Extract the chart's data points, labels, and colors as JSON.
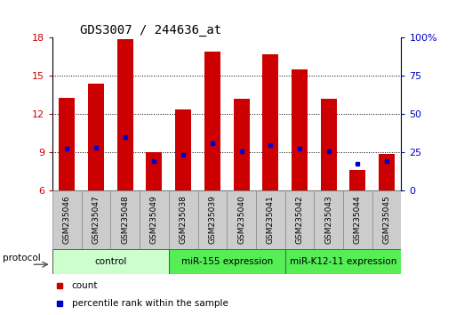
{
  "title": "GDS3007 / 244636_at",
  "samples": [
    "GSM235046",
    "GSM235047",
    "GSM235048",
    "GSM235049",
    "GSM235038",
    "GSM235039",
    "GSM235040",
    "GSM235041",
    "GSM235042",
    "GSM235043",
    "GSM235044",
    "GSM235045"
  ],
  "count_values": [
    13.3,
    14.4,
    17.9,
    9.0,
    12.4,
    16.9,
    13.2,
    16.7,
    15.5,
    13.2,
    7.6,
    8.9
  ],
  "percentile_values": [
    9.3,
    9.4,
    10.2,
    8.3,
    8.8,
    9.7,
    9.1,
    9.6,
    9.3,
    9.1,
    8.1,
    8.3
  ],
  "y_min": 6,
  "y_max": 18,
  "y_ticks": [
    6,
    9,
    12,
    15,
    18
  ],
  "y2_ticks": [
    0,
    25,
    50,
    75,
    100
  ],
  "bar_color": "#cc0000",
  "percentile_color": "#0000cc",
  "group_data": [
    {
      "label": "control",
      "start": 0,
      "end": 4,
      "facecolor": "#ccffcc"
    },
    {
      "label": "miR-155 expression",
      "start": 4,
      "end": 8,
      "facecolor": "#55ee55"
    },
    {
      "label": "miR-K12-11 expression",
      "start": 8,
      "end": 12,
      "facecolor": "#55ee55"
    }
  ],
  "protocol_label": "protocol",
  "legend_count": "count",
  "legend_percentile": "percentile rank within the sample",
  "bar_width": 0.55,
  "sample_box_color": "#cccccc",
  "sample_box_edge": "#888888"
}
